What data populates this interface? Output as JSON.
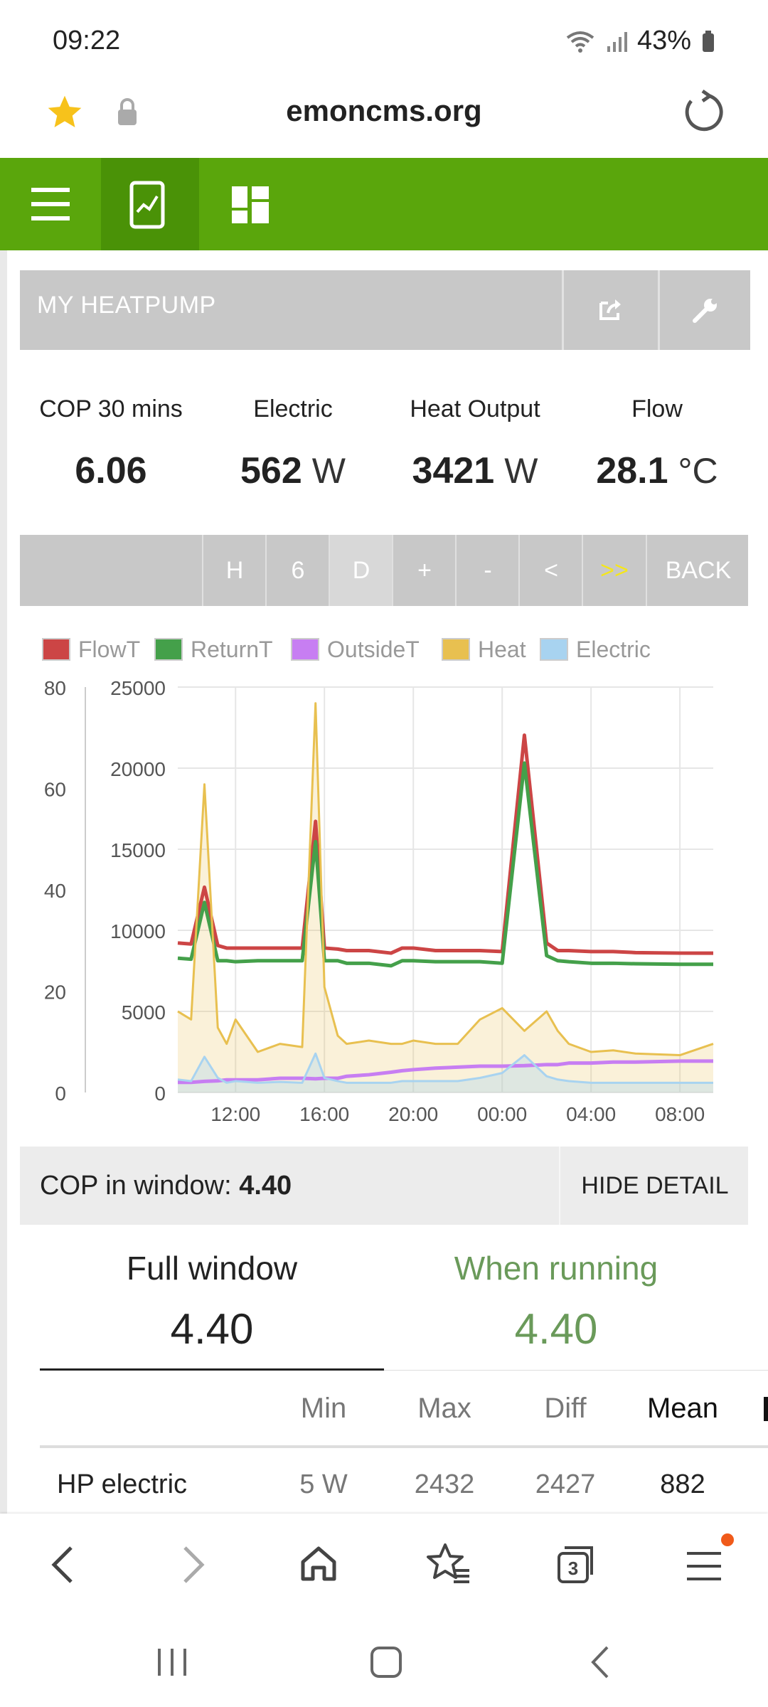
{
  "status": {
    "time": "09:22",
    "battery": "43%"
  },
  "browser": {
    "url": "emoncms.org"
  },
  "panel": {
    "title": "MY HEATPUMP",
    "stats": [
      {
        "label": "COP 30 mins",
        "value": "6.06",
        "unit": ""
      },
      {
        "label": "Electric",
        "value": "562",
        "unit": "W"
      },
      {
        "label": "Heat Output",
        "value": "3421",
        "unit": "W"
      },
      {
        "label": "Flow",
        "value": "28.1",
        "unit": "°C"
      }
    ],
    "controls": [
      "H",
      "6",
      "D",
      "+",
      "-",
      "<",
      ">>",
      "BACK"
    ]
  },
  "colors": {
    "accent_green": "#5aa60c",
    "flowT": "#cc4545",
    "returnT": "#44a04a",
    "outsideT": "#c77ef2",
    "heat": "#e8c050",
    "electric": "#a8d3f0"
  },
  "chart_data": {
    "type": "line",
    "legend": [
      "FlowT",
      "ReturnT",
      "OutsideT",
      "Heat",
      "Electric"
    ],
    "x_ticks": [
      "12:00",
      "16:00",
      "20:00",
      "00:00",
      "04:00",
      "08:00"
    ],
    "y_left_ticks": [
      "0",
      "20",
      "40",
      "60",
      "80"
    ],
    "y_right_ticks": [
      "0",
      "5000",
      "10000",
      "15000",
      "20000",
      "25000"
    ],
    "ylim_left": [
      0,
      80
    ],
    "ylim_right": [
      0,
      25000
    ],
    "x_hours": [
      9.4,
      10.0,
      10.6,
      11.2,
      11.6,
      12.0,
      13.0,
      14.0,
      15.0,
      15.6,
      16.0,
      16.6,
      17.0,
      18.0,
      19.0,
      19.5,
      20.0,
      21.0,
      22.0,
      23.0,
      24.0,
      25.0,
      26.0,
      26.5,
      27.0,
      28.0,
      29.0,
      30.0,
      32.0,
      33.5
    ],
    "series": [
      {
        "name": "FlowT",
        "axis": "left",
        "values": [
          29.5,
          29.3,
          40.5,
          29.0,
          28.5,
          28.5,
          28.5,
          28.5,
          28.5,
          53.5,
          28.5,
          28.3,
          28.0,
          28.0,
          27.5,
          28.5,
          28.5,
          28.0,
          28.0,
          28.0,
          27.8,
          70.5,
          29.5,
          28.0,
          28.0,
          27.8,
          27.8,
          27.6,
          27.5,
          27.5
        ]
      },
      {
        "name": "ReturnT",
        "axis": "left",
        "values": [
          26.5,
          26.3,
          37.5,
          26.0,
          26.0,
          25.8,
          26.0,
          26.0,
          26.0,
          49.5,
          26.0,
          26.0,
          25.5,
          25.5,
          25.0,
          26.0,
          26.0,
          25.8,
          25.8,
          25.8,
          25.5,
          65.0,
          27.0,
          26.0,
          25.8,
          25.5,
          25.5,
          25.4,
          25.3,
          25.3
        ]
      },
      {
        "name": "OutsideT",
        "axis": "left",
        "values": [
          2.0,
          2.0,
          2.2,
          2.3,
          2.5,
          2.5,
          2.5,
          2.8,
          2.8,
          2.7,
          2.8,
          2.8,
          3.2,
          3.5,
          4.0,
          4.3,
          4.5,
          4.8,
          5.0,
          5.2,
          5.2,
          5.3,
          5.5,
          5.5,
          5.8,
          5.8,
          6.0,
          6.0,
          6.2,
          6.2
        ]
      },
      {
        "name": "Heat",
        "axis": "right",
        "values": [
          5000,
          4500,
          19000,
          4000,
          3000,
          4500,
          2500,
          3000,
          2800,
          24000,
          6500,
          3500,
          3000,
          3200,
          3000,
          3000,
          3200,
          3000,
          3000,
          4500,
          5200,
          3800,
          5000,
          3800,
          3000,
          2500,
          2600,
          2400,
          2300,
          3000
        ]
      },
      {
        "name": "Electric",
        "axis": "right",
        "values": [
          800,
          700,
          2200,
          900,
          600,
          700,
          600,
          650,
          600,
          2400,
          900,
          700,
          600,
          600,
          600,
          700,
          700,
          700,
          700,
          900,
          1200,
          2300,
          1000,
          800,
          700,
          600,
          600,
          600,
          600,
          600
        ]
      }
    ]
  },
  "cop": {
    "label": "COP in window:",
    "value": "4.40",
    "hide_label": "HIDE DETAIL"
  },
  "summary": {
    "tabs": [
      {
        "title": "Full window",
        "value": "4.40"
      },
      {
        "title": "When running",
        "value": "4.40"
      }
    ],
    "headers": [
      "Min",
      "Max",
      "Diff",
      "Mean"
    ],
    "rows": [
      {
        "name": "HP electric",
        "min": "5 W",
        "max": "2432",
        "diff": "2427",
        "mean": "882"
      }
    ]
  }
}
